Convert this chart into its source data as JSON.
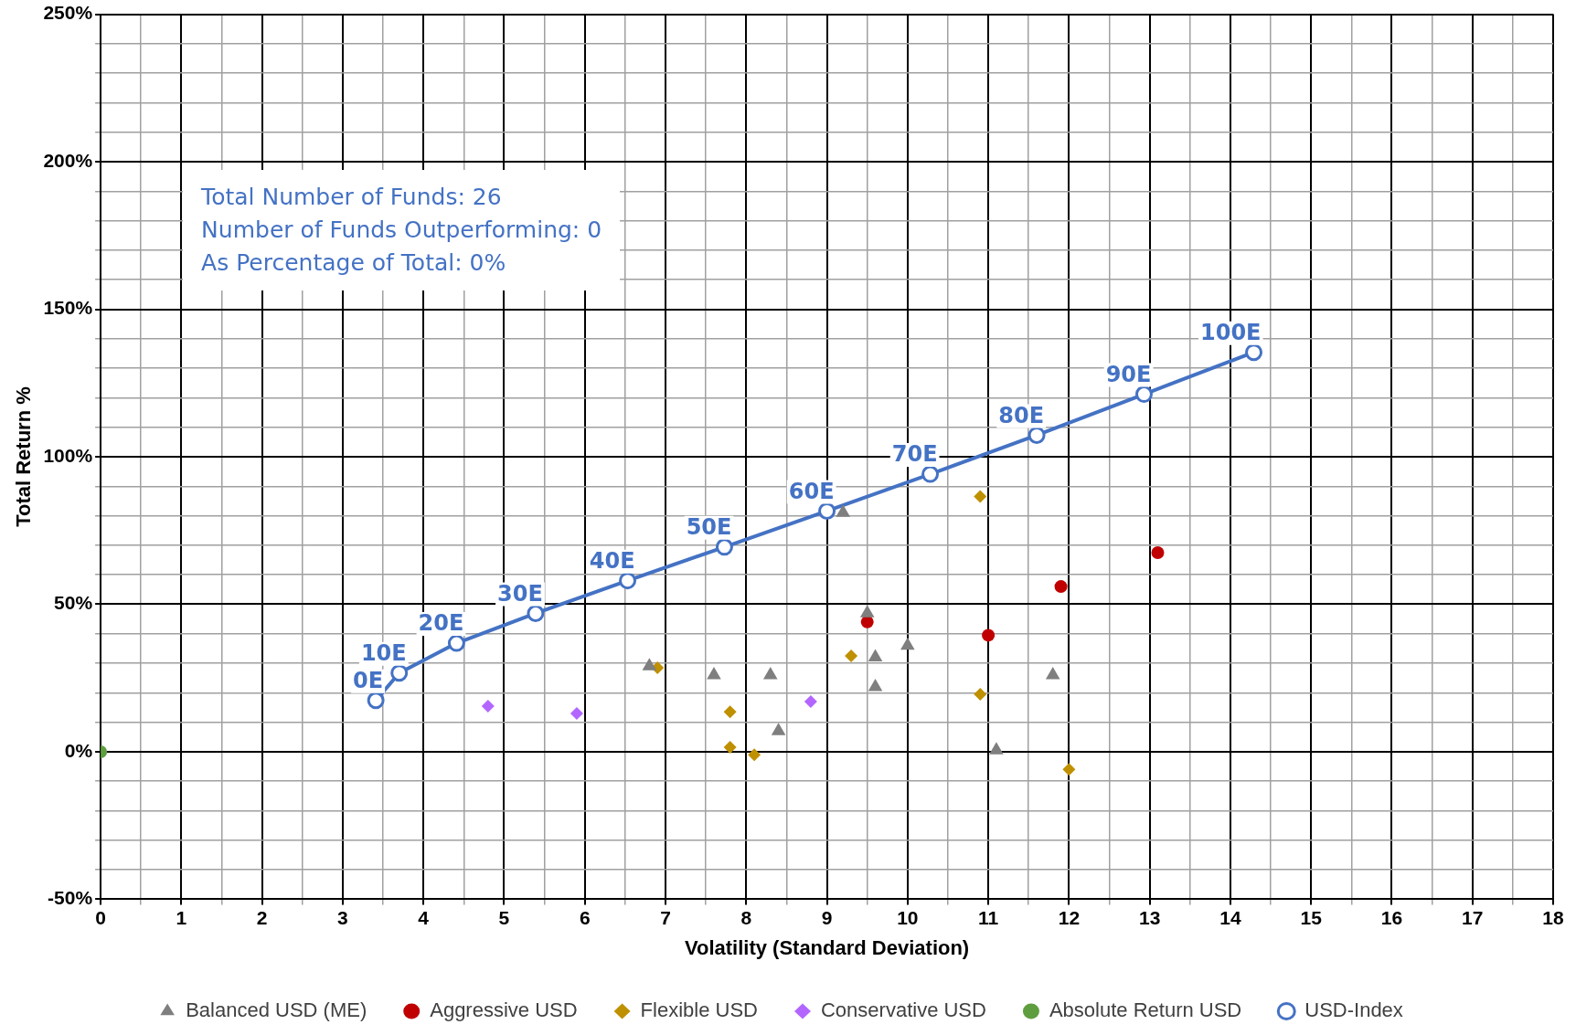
{
  "chart_data": {
    "type": "scatter",
    "xlabel": "Volatility (Standard Deviation)",
    "ylabel": "Total Return %",
    "xlim": [
      0,
      18
    ],
    "ylim": [
      -50,
      250
    ],
    "xticks": [
      0,
      {
        "value": 0.5,
        "label": null
      },
      1,
      {
        "value": 1.5,
        "label": null
      },
      2,
      {
        "value": 2.5,
        "label": null
      },
      3,
      {
        "value": 3.5,
        "label": null
      },
      4,
      {
        "value": 4.5,
        "label": null
      },
      5,
      {
        "value": 5.5,
        "label": null
      },
      6,
      {
        "value": 6.5,
        "label": null
      },
      7,
      {
        "value": 7.5,
        "label": null
      },
      8,
      {
        "value": 8.5,
        "label": null
      },
      9,
      {
        "value": 9.5,
        "label": null
      },
      10,
      {
        "value": 10.5,
        "label": null
      },
      11,
      {
        "value": 11.5,
        "label": null
      },
      12,
      {
        "value": 12.5,
        "label": null
      },
      13,
      {
        "value": 13.5,
        "label": null
      },
      14,
      {
        "value": 14.5,
        "label": null
      },
      15,
      {
        "value": 15.5,
        "label": null
      },
      16,
      {
        "value": 16.5,
        "label": null
      },
      17,
      {
        "value": 17.5,
        "label": null
      },
      18
    ],
    "yticks": [
      {
        "value": -50,
        "label": "-50%"
      },
      {
        "value": -40,
        "label": null
      },
      {
        "value": -30,
        "label": null
      },
      {
        "value": -20,
        "label": null
      },
      {
        "value": -10,
        "label": null
      },
      {
        "value": 0,
        "label": "0%"
      },
      {
        "value": 10,
        "label": null
      },
      {
        "value": 20,
        "label": null
      },
      {
        "value": 30,
        "label": null
      },
      {
        "value": 40,
        "label": null
      },
      {
        "value": 50,
        "label": "50%"
      },
      {
        "value": 60,
        "label": null
      },
      {
        "value": 70,
        "label": null
      },
      {
        "value": 80,
        "label": null
      },
      {
        "value": 90,
        "label": null
      },
      {
        "value": 100,
        "label": "100%"
      },
      {
        "value": 110,
        "label": null
      },
      {
        "value": 120,
        "label": null
      },
      {
        "value": 130,
        "label": null
      },
      {
        "value": 140,
        "label": null
      },
      {
        "value": 150,
        "label": "150%"
      },
      {
        "value": 160,
        "label": null
      },
      {
        "value": 170,
        "label": null
      },
      {
        "value": 180,
        "label": null
      },
      {
        "value": 190,
        "label": null
      },
      {
        "value": 200,
        "label": "200%"
      },
      {
        "value": 210,
        "label": null
      },
      {
        "value": 220,
        "label": null
      },
      {
        "value": 230,
        "label": null
      },
      {
        "value": 240,
        "label": null
      },
      {
        "value": 250,
        "label": "250%"
      }
    ],
    "grid": true,
    "legend": "bottom",
    "series": [
      {
        "name": "Balanced USD (ME)",
        "type": "scatter",
        "marker": "triangle",
        "color": "#7f7f7f",
        "x": [
          6.8,
          7.6,
          8.3,
          8.4,
          9.2,
          9.5,
          9.6,
          9.6,
          10.0,
          11.1,
          11.8
        ],
        "values": [
          29,
          26,
          26,
          7,
          81,
          47,
          32,
          22,
          36,
          0.5,
          26
        ]
      },
      {
        "name": "Aggressive USD",
        "type": "scatter",
        "marker": "circle",
        "color": "#c00000",
        "x": [
          9.5,
          11.0,
          11.9,
          13.1
        ],
        "values": [
          44,
          39.5,
          56,
          67.5
        ]
      },
      {
        "name": "Flexible USD",
        "type": "scatter",
        "marker": "diamond",
        "color": "#bf9000",
        "x": [
          6.9,
          7.8,
          7.8,
          8.1,
          9.3,
          10.9,
          10.9,
          12.0
        ],
        "values": [
          28.5,
          13.5,
          1.5,
          -1,
          32.5,
          86.5,
          19.5,
          -6
        ]
      },
      {
        "name": "Conservative USD",
        "type": "scatter",
        "marker": "diamond",
        "color": "#b366ff",
        "x": [
          4.8,
          5.9,
          8.8
        ],
        "values": [
          15.5,
          13,
          17
        ]
      },
      {
        "name": "Absolute Return USD",
        "type": "scatter",
        "marker": "circle",
        "color": "#5e9e3e",
        "x": [
          0
        ],
        "values": [
          0
        ]
      },
      {
        "name": "USD-Index",
        "type": "line",
        "marker": "circle",
        "line_style": "solid",
        "color": "#4472c4",
        "x": [
          3.41,
          3.7,
          4.41,
          5.39,
          6.53,
          7.73,
          9.0,
          10.28,
          11.6,
          12.93,
          14.29
        ],
        "values": [
          17.4,
          26.7,
          36.8,
          46.9,
          58.0,
          69.4,
          81.6,
          94.1,
          107.3,
          121.2,
          135.4
        ]
      }
    ],
    "annotations": [
      "Total Number of Funds: 26",
      "Number of Funds Outperforming: 0",
      "As Percentage of Total: 0%",
      {
        "text": "0E",
        "x": 3.41,
        "y": 17.4
      },
      {
        "text": "10E",
        "x": 3.7,
        "y": 26.7
      },
      {
        "text": "20E",
        "x": 4.41,
        "y": 36.8
      },
      {
        "text": "30E",
        "x": 5.39,
        "y": 46.9
      },
      {
        "text": "40E",
        "x": 6.53,
        "y": 58.0
      },
      {
        "text": "50E",
        "x": 7.73,
        "y": 69.4
      },
      {
        "text": "60E",
        "x": 9.0,
        "y": 81.6
      },
      {
        "text": "70E",
        "x": 10.28,
        "y": 94.1
      },
      {
        "text": "80E",
        "x": 11.6,
        "y": 107.3
      },
      {
        "text": "90E",
        "x": 12.93,
        "y": 121.2
      },
      {
        "text": "100E",
        "x": 14.29,
        "y": 135.4
      }
    ]
  }
}
